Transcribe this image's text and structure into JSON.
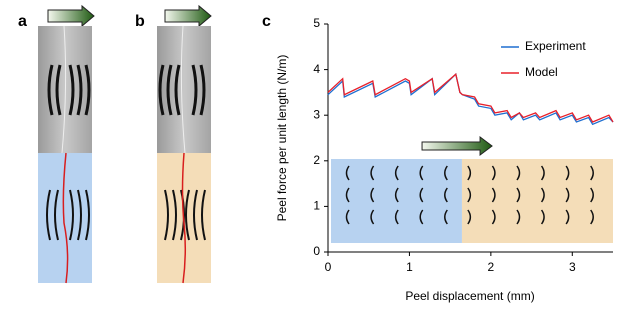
{
  "panel_labels": [
    "a",
    "b",
    "c"
  ],
  "chart_data": {
    "type": "line",
    "x_label": "Peel displacement (mm)",
    "y_label": "Peel force per unit length (N/m)",
    "x": [
      0,
      0.18,
      0.2,
      0.55,
      0.58,
      0.95,
      1.0,
      1.02,
      1.28,
      1.31,
      1.57,
      1.62,
      1.65,
      1.8,
      1.85,
      2.0,
      2.05,
      2.2,
      2.25,
      2.35,
      2.4,
      2.55,
      2.6,
      2.8,
      2.85,
      3.0,
      3.05,
      3.2,
      3.25,
      3.45,
      3.5
    ],
    "series": [
      {
        "name": "Experiment",
        "color": "#1f6fd0",
        "values": [
          3.45,
          3.75,
          3.4,
          3.7,
          3.4,
          3.75,
          3.7,
          3.45,
          3.8,
          3.45,
          3.9,
          3.5,
          3.45,
          3.35,
          3.2,
          3.15,
          3.0,
          3.05,
          2.9,
          3.05,
          2.9,
          3.0,
          2.9,
          3.05,
          2.9,
          3.0,
          2.85,
          2.95,
          2.8,
          2.95,
          2.85
        ]
      },
      {
        "name": "Model",
        "color": "#e8202a",
        "values": [
          3.5,
          3.8,
          3.45,
          3.75,
          3.45,
          3.8,
          3.75,
          3.5,
          3.8,
          3.5,
          3.9,
          3.5,
          3.45,
          3.4,
          3.25,
          3.2,
          3.05,
          3.1,
          2.95,
          3.05,
          2.95,
          3.05,
          2.95,
          3.1,
          2.95,
          3.05,
          2.9,
          3.0,
          2.85,
          3.0,
          2.85
        ]
      }
    ],
    "xlim": [
      0,
      3.5
    ],
    "ylim": [
      0,
      5
    ],
    "xticks": [
      0,
      1,
      2,
      3
    ],
    "yticks": [
      0,
      1,
      2,
      3,
      4,
      5
    ],
    "grid": false,
    "legend": "upper right"
  }
}
